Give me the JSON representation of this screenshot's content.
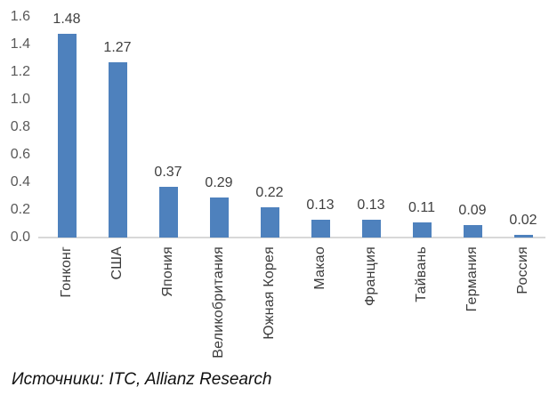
{
  "chart_data": {
    "type": "bar",
    "title": "",
    "xlabel": "",
    "ylabel": "",
    "categories": [
      "Гонконг",
      "США",
      "Япония",
      "Великобритания",
      "Южная Корея",
      "Макао",
      "Франция",
      "Тайвань",
      "Германия",
      "Россия"
    ],
    "values": [
      1.48,
      1.27,
      0.37,
      0.29,
      0.22,
      0.13,
      0.13,
      0.11,
      0.09,
      0.02
    ],
    "value_labels": [
      "1.48",
      "1.27",
      "0.37",
      "0.29",
      "0.22",
      "0.13",
      "0.13",
      "0.11",
      "0.09",
      "0.02"
    ],
    "y_ticks": [
      "1.6",
      "1.4",
      "1.2",
      "1.0",
      "0.8",
      "0.6",
      "0.4",
      "0.2",
      "0.0"
    ],
    "ylim": [
      0,
      1.6
    ],
    "grid": false,
    "legend": "none",
    "bar_color": "#4E81BD",
    "axis_line_color": "#D8D8D8",
    "y_tick_color": "#595959",
    "value_label_color": "#3F3F3F",
    "category_label_color": "#3B3B3B"
  },
  "footer": {
    "source_note": "Источники: ITC, Allianz Research"
  }
}
